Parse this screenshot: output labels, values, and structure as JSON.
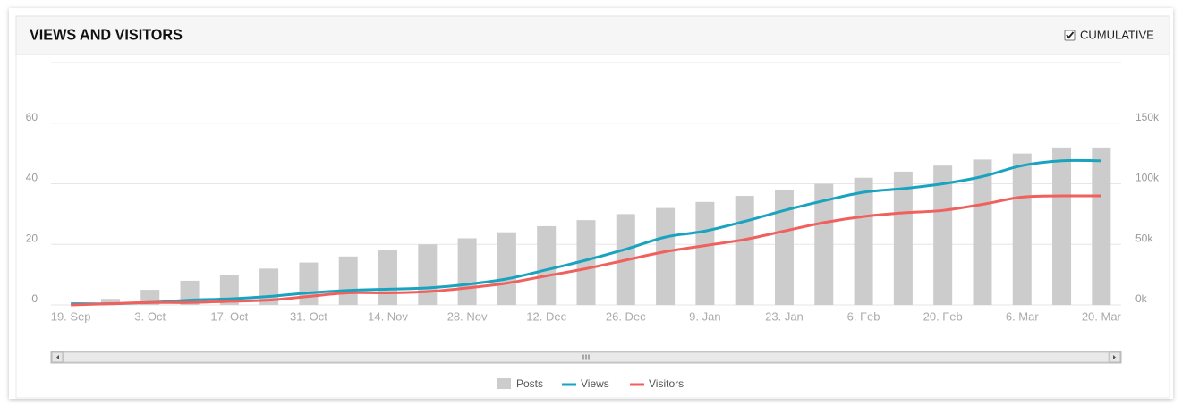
{
  "chart_data": {
    "type": "bar-line",
    "title": "VIEWS AND VISITORS",
    "cumulative": {
      "label": "CUMULATIVE",
      "checked": true
    },
    "categories": [
      "19. Sep",
      null,
      "3. Oct",
      null,
      "17. Oct",
      null,
      "31. Oct",
      null,
      "14. Nov",
      null,
      "28. Nov",
      null,
      "12. Dec",
      null,
      "26. Dec",
      null,
      "9. Jan",
      null,
      "23. Jan",
      null,
      "6. Feb",
      null,
      "20. Feb",
      null,
      "6. Mar",
      null,
      "20. Mar"
    ],
    "series": [
      {
        "name": "Posts",
        "color": "#cccccc",
        "kind": "bar",
        "axis": "y",
        "values": [
          0,
          2,
          5,
          8,
          10,
          12,
          14,
          16,
          18,
          20,
          22,
          24,
          26,
          28,
          30,
          32,
          34,
          36,
          38,
          40,
          42,
          44,
          46,
          48,
          50,
          52,
          52
        ]
      },
      {
        "name": "Views",
        "color": "#1aa3bf",
        "kind": "line",
        "axis": "y2",
        "values": [
          1000,
          1000,
          2000,
          4000,
          5000,
          7000,
          10000,
          12000,
          13000,
          14000,
          17000,
          21500,
          29000,
          37000,
          46000,
          56000,
          61000,
          69000,
          78000,
          86000,
          93000,
          96000,
          100000,
          106000,
          115000,
          119000,
          119000
        ]
      },
      {
        "name": "Visitors",
        "color": "#f0605d",
        "kind": "line",
        "axis": "y2",
        "values": [
          0,
          1000,
          2000,
          2000,
          3000,
          4000,
          7000,
          10000,
          10000,
          11000,
          14000,
          18000,
          24000,
          30000,
          37000,
          44000,
          49000,
          54000,
          61000,
          68000,
          73000,
          76000,
          78000,
          83000,
          89000,
          90000,
          90000
        ]
      }
    ],
    "ylim": [
      0,
      80
    ],
    "yticks": [
      0,
      20,
      40,
      60
    ],
    "y2lim": [
      0,
      200000
    ],
    "y2ticks": [
      {
        "value": 0,
        "label": "0k"
      },
      {
        "value": 50000,
        "label": "50k"
      },
      {
        "value": 100000,
        "label": "100k"
      },
      {
        "value": 150000,
        "label": "150k"
      }
    ],
    "grid": true
  }
}
